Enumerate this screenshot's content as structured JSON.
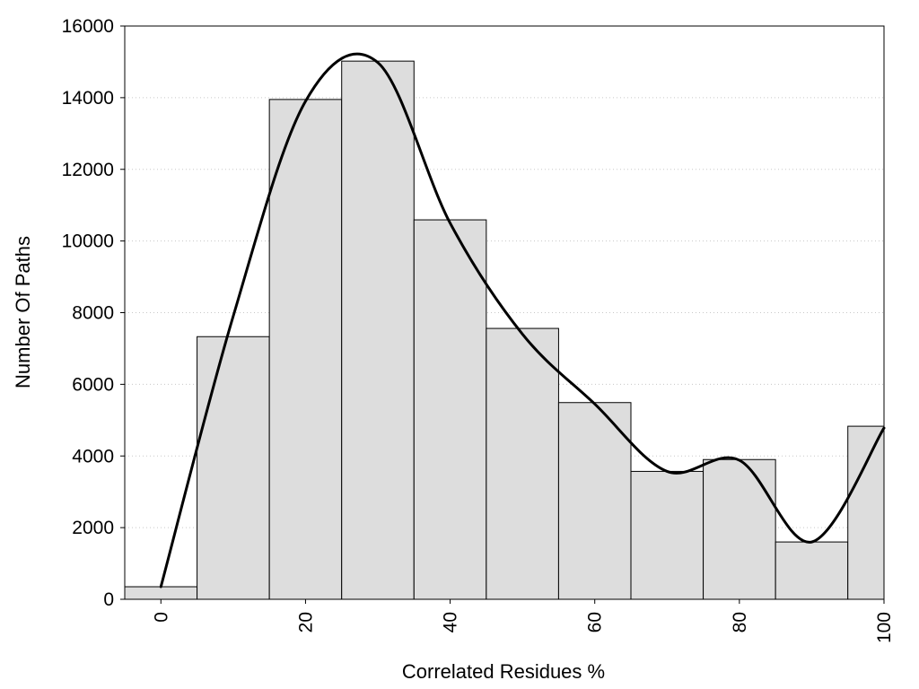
{
  "chart_data": {
    "type": "bar",
    "title": "",
    "xlabel": "Correlated Residues %",
    "ylabel": "Number Of Paths",
    "xlim": [
      -5,
      100
    ],
    "ylim": [
      0,
      16000
    ],
    "grid": "horizontal-dotted",
    "legend": "none",
    "x_ticks": [
      "0",
      "20",
      "40",
      "60",
      "80",
      "100"
    ],
    "y_ticks": [
      "0",
      "2000",
      "4000",
      "6000",
      "8000",
      "10000",
      "12000",
      "14000",
      "16000"
    ],
    "bin_width": 10,
    "bins": [
      {
        "x": 0,
        "value": 350
      },
      {
        "x": 10,
        "value": 7330
      },
      {
        "x": 20,
        "value": 13950
      },
      {
        "x": 30,
        "value": 15020
      },
      {
        "x": 40,
        "value": 10590
      },
      {
        "x": 50,
        "value": 7560
      },
      {
        "x": 60,
        "value": 5490
      },
      {
        "x": 70,
        "value": 3570
      },
      {
        "x": 80,
        "value": 3900
      },
      {
        "x": 90,
        "value": 1600
      },
      {
        "x": 100,
        "value": 4830
      }
    ],
    "smooth_series": {
      "x": [
        0,
        10,
        20,
        30,
        40,
        50,
        60,
        70,
        80,
        90,
        100
      ],
      "y": [
        350,
        7900,
        13900,
        14980,
        10500,
        7400,
        5450,
        3570,
        3880,
        1600,
        4780
      ]
    },
    "colors": {
      "bar_fill": "#dddddd",
      "bar_stroke": "#000000",
      "line": "#000000",
      "grid": "#c8c8c8"
    }
  }
}
